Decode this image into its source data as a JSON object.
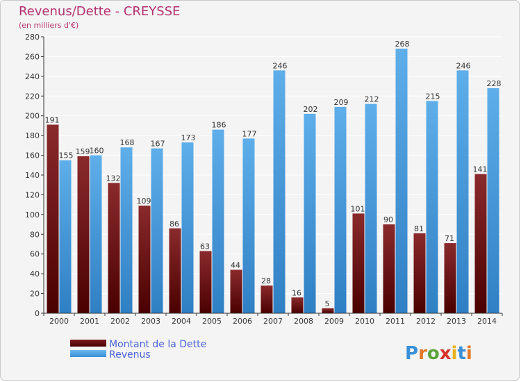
{
  "chart_data": {
    "type": "bar",
    "title": "Revenus/Dette - CREYSSE",
    "subtitle": "(en milliers d'€)",
    "categories": [
      "2000",
      "2001",
      "2002",
      "2003",
      "2004",
      "2005",
      "2006",
      "2007",
      "2008",
      "2009",
      "2010",
      "2011",
      "2012",
      "2013",
      "2014"
    ],
    "series": [
      {
        "name": "Montant de la Dette",
        "values": [
          191,
          159,
          132,
          109,
          86,
          63,
          44,
          28,
          16,
          5,
          101,
          90,
          81,
          71,
          141
        ],
        "color": "#6b0f12"
      },
      {
        "name": "Revenus",
        "values": [
          155,
          160,
          168,
          167,
          173,
          186,
          177,
          246,
          202,
          209,
          212,
          268,
          215,
          246,
          228
        ],
        "color": "#3a8fd6"
      }
    ],
    "yticks": [
      0,
      20,
      40,
      60,
      80,
      100,
      120,
      140,
      160,
      180,
      200,
      220,
      240,
      260,
      280
    ],
    "ylim": [
      0,
      280
    ],
    "grid": true,
    "legend": "bottom-left",
    "xlabel": "",
    "ylabel": ""
  },
  "watermark": "Proxiti"
}
